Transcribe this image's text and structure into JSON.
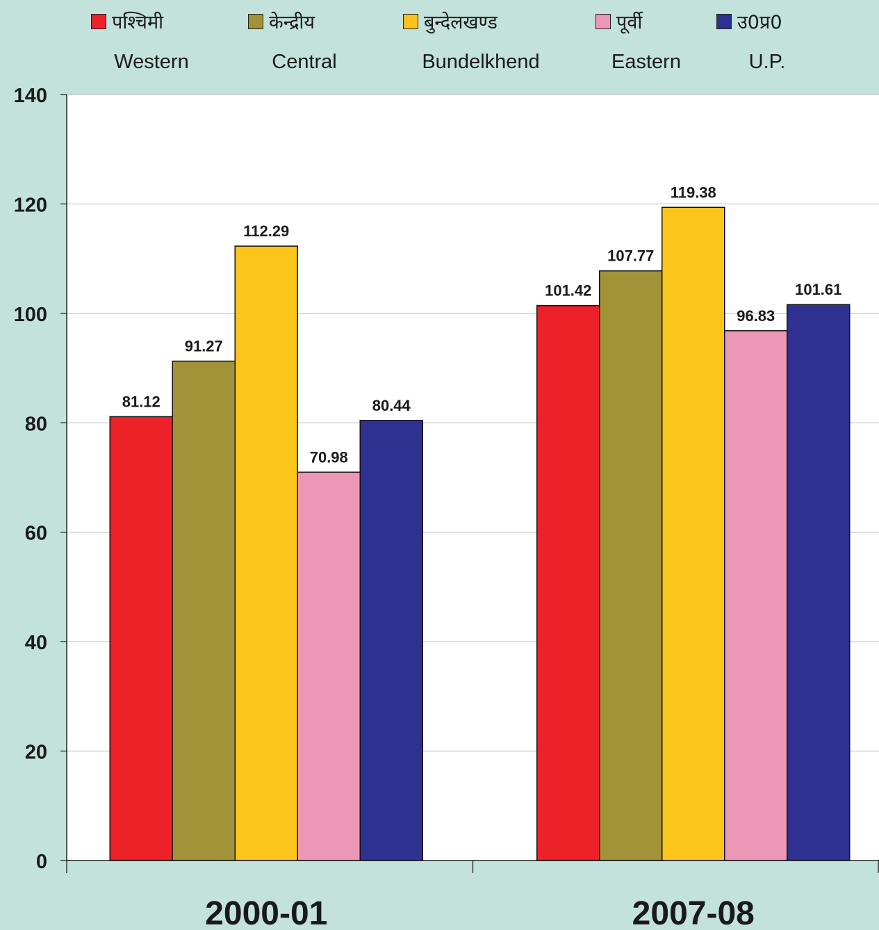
{
  "legend": [
    {
      "hindi": "पश्चिमी",
      "english": "Western",
      "color": "#ed2229"
    },
    {
      "hindi": "केन्द्रीय",
      "english": "Central",
      "color": "#a29339"
    },
    {
      "hindi": "बुन्देलखण्ड",
      "english": "Bundelkhend",
      "color": "#fbc51b"
    },
    {
      "hindi": "पूर्वी",
      "english": "Eastern",
      "color": "#ec97b6"
    },
    {
      "hindi": "उ0प्र0",
      "english": "U.P.",
      "color": "#2e3190"
    }
  ],
  "chart_data": {
    "type": "bar",
    "categories": [
      "2000-01",
      "2007-08"
    ],
    "series": [
      {
        "name": "Western",
        "values": [
          81.12,
          101.42
        ]
      },
      {
        "name": "Central",
        "values": [
          91.27,
          107.77
        ]
      },
      {
        "name": "Bundelkhend",
        "values": [
          112.29,
          119.38
        ]
      },
      {
        "name": "Eastern",
        "values": [
          70.98,
          96.83
        ]
      },
      {
        "name": "U.P.",
        "values": [
          80.44,
          101.61
        ]
      }
    ],
    "ylim": [
      0,
      140
    ],
    "yticks": [
      0,
      20,
      40,
      60,
      80,
      100,
      120,
      140
    ],
    "grid": true,
    "legend_position": "top"
  }
}
